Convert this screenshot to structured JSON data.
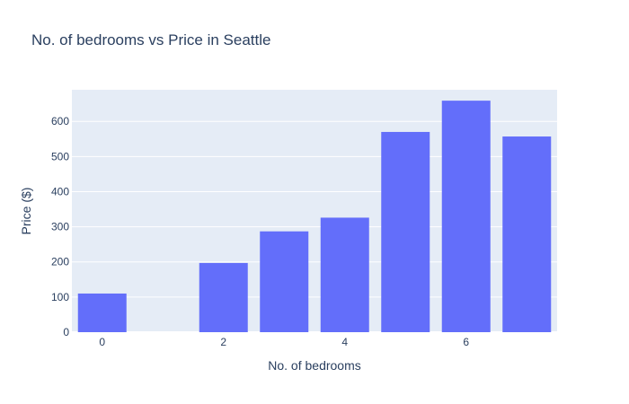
{
  "chart_data": {
    "type": "bar",
    "title": "No. of bedrooms vs Price in Seattle",
    "xlabel": "No. of bedrooms",
    "ylabel": "Price ($)",
    "x": [
      0,
      2,
      3,
      4,
      5,
      6,
      7
    ],
    "values": [
      110,
      197,
      287,
      326,
      570,
      659,
      557
    ],
    "xlim": [
      -0.5,
      7.5
    ],
    "ylim": [
      0,
      690
    ],
    "xticks": [
      0,
      2,
      4,
      6
    ],
    "yticks": [
      0,
      100,
      200,
      300,
      400,
      500,
      600
    ],
    "grid": true,
    "colors": {
      "bar": "#636efa",
      "plot_bg": "#e5ecf6",
      "grid": "#ffffff",
      "text": "#2a3f5f"
    }
  }
}
